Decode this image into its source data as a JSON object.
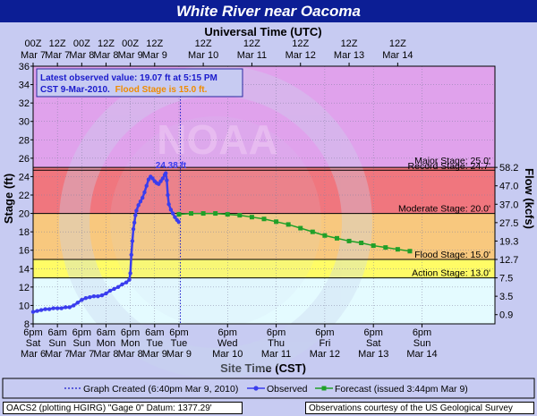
{
  "title": "White River near Oacoma",
  "top_axis_title": "Universal Time (UTC)",
  "bottom_axis_title": "Site Time (CST)",
  "ylabel": "Stage (ft)",
  "y2label": "Flow (kcfs)",
  "info_box": {
    "line1": "Latest observed value: 19.07 ft at 5:15 PM",
    "line2a": "CST 9-Mar-2010.",
    "line2b": "Flood Stage is 15.0 ft."
  },
  "peak_label": "24.38 ft",
  "legend": {
    "created": "Graph Created (6:40pm Mar 9, 2010)",
    "observed": "Observed",
    "forecast": "Forecast (issued 3:44pm Mar 9)"
  },
  "footer": {
    "left": "OACS2 (plotting HGIRG)  \"Gage 0\" Datum: 1377.29'",
    "right": "Observations courtesy of the  US Geological Survey"
  },
  "colors": {
    "title_bg": "#0c1e95",
    "major": "#e0a2ec",
    "moderate": "#f0767e",
    "flood": "#f8c87e",
    "action": "#fffc66",
    "normal": "#e4fbff",
    "observed": "#3a3dee",
    "forecast": "#20a028"
  },
  "chart_data": {
    "type": "line",
    "x_unit": "hours after 6pm Mar 6 CST",
    "xlim": [
      0,
      228
    ],
    "ylim": [
      8,
      36
    ],
    "y_ticks": [
      8,
      10,
      12,
      14,
      16,
      18,
      20,
      22,
      24,
      26,
      28,
      30,
      32,
      34,
      36
    ],
    "x_ticks_bottom": [
      {
        "x": 0,
        "l1": "6pm",
        "l2": "Sat",
        "l3": "Mar 6"
      },
      {
        "x": 12,
        "l1": "6am",
        "l2": "Sun",
        "l3": "Mar 7"
      },
      {
        "x": 24,
        "l1": "6pm",
        "l2": "Sun",
        "l3": "Mar 7"
      },
      {
        "x": 36,
        "l1": "6am",
        "l2": "Mon",
        "l3": "Mar 8"
      },
      {
        "x": 48,
        "l1": "6pm",
        "l2": "Mon",
        "l3": "Mar 8"
      },
      {
        "x": 60,
        "l1": "6am",
        "l2": "Tue",
        "l3": "Mar 9"
      },
      {
        "x": 72,
        "l1": "6pm",
        "l2": "Tue",
        "l3": "Mar 9"
      },
      {
        "x": 96,
        "l1": "6pm",
        "l2": "Wed",
        "l3": "Mar 10"
      },
      {
        "x": 120,
        "l1": "6pm",
        "l2": "Thu",
        "l3": "Mar 11"
      },
      {
        "x": 144,
        "l1": "6pm",
        "l2": "Fri",
        "l3": "Mar 12"
      },
      {
        "x": 168,
        "l1": "6pm",
        "l2": "Sat",
        "l3": "Mar 13"
      },
      {
        "x": 192,
        "l1": "6pm",
        "l2": "Sun",
        "l3": "Mar 14"
      }
    ],
    "x_ticks_top": [
      {
        "x": 0,
        "l1": "00Z",
        "l2": "Mar 7"
      },
      {
        "x": 12,
        "l1": "12Z",
        "l2": "Mar 7"
      },
      {
        "x": 24,
        "l1": "00Z",
        "l2": "Mar 8"
      },
      {
        "x": 36,
        "l1": "12Z",
        "l2": "Mar 8"
      },
      {
        "x": 48,
        "l1": "00Z",
        "l2": "Mar 9"
      },
      {
        "x": 60,
        "l1": "12Z",
        "l2": "Mar 9"
      },
      {
        "x": 84,
        "l1": "12Z",
        "l2": "Mar 10"
      },
      {
        "x": 108,
        "l1": "12Z",
        "l2": "Mar 11"
      },
      {
        "x": 132,
        "l1": "12Z",
        "l2": "Mar 12"
      },
      {
        "x": 156,
        "l1": "12Z",
        "l2": "Mar 13"
      },
      {
        "x": 180,
        "l1": "12Z",
        "l2": "Mar 14"
      }
    ],
    "flow_ticks": [
      {
        "stage": 9,
        "label": "0.9"
      },
      {
        "stage": 11,
        "label": "3.5"
      },
      {
        "stage": 13,
        "label": "7.5"
      },
      {
        "stage": 15,
        "label": "12.7"
      },
      {
        "stage": 17,
        "label": "19.3"
      },
      {
        "stage": 19,
        "label": "27.5"
      },
      {
        "stage": 21,
        "label": "37.0"
      },
      {
        "stage": 23,
        "label": "47.0"
      },
      {
        "stage": 25,
        "label": "58.2"
      }
    ],
    "stage_bands": [
      {
        "from": 25.0,
        "to": 36,
        "color": "#e0a2ec"
      },
      {
        "from": 20.0,
        "to": 25.0,
        "color": "#f0767e"
      },
      {
        "from": 15.0,
        "to": 20.0,
        "color": "#f8c87e"
      },
      {
        "from": 13.0,
        "to": 15.0,
        "color": "#fffc66"
      },
      {
        "from": 8,
        "to": 13.0,
        "color": "#e4fbff"
      }
    ],
    "thresholds": [
      {
        "value": 25.0,
        "label": "Major Stage: 25.0'"
      },
      {
        "value": 24.7,
        "label": "Record Stage: 24.7'"
      },
      {
        "value": 20.0,
        "label": "Moderate Stage: 20.0'"
      },
      {
        "value": 15.0,
        "label": "Flood Stage: 15.0'"
      },
      {
        "value": 13.0,
        "label": "Action Stage: 13.0'"
      }
    ],
    "graph_created_x": 72.7,
    "observed": [
      [
        0,
        9.3
      ],
      [
        2,
        9.4
      ],
      [
        4,
        9.5
      ],
      [
        6,
        9.6
      ],
      [
        8,
        9.6
      ],
      [
        10,
        9.7
      ],
      [
        12,
        9.7
      ],
      [
        14,
        9.7
      ],
      [
        16,
        9.8
      ],
      [
        18,
        9.8
      ],
      [
        20,
        10.0
      ],
      [
        22,
        10.3
      ],
      [
        24,
        10.6
      ],
      [
        26,
        10.8
      ],
      [
        28,
        10.9
      ],
      [
        30,
        11.0
      ],
      [
        32,
        11.0
      ],
      [
        34,
        11.1
      ],
      [
        36,
        11.3
      ],
      [
        38,
        11.6
      ],
      [
        40,
        11.8
      ],
      [
        42,
        12.0
      ],
      [
        44,
        12.3
      ],
      [
        46,
        12.5
      ],
      [
        47.5,
        12.8
      ],
      [
        48,
        13.5
      ],
      [
        48.5,
        15.5
      ],
      [
        49,
        17.0
      ],
      [
        49.5,
        18.3
      ],
      [
        50,
        19.0
      ],
      [
        50.5,
        19.8
      ],
      [
        51,
        20.3
      ],
      [
        52,
        20.9
      ],
      [
        53,
        21.3
      ],
      [
        54,
        21.7
      ],
      [
        55,
        22.3
      ],
      [
        56,
        23.0
      ],
      [
        57,
        23.7
      ],
      [
        58,
        24.0
      ],
      [
        59,
        23.8
      ],
      [
        60,
        23.5
      ],
      [
        61,
        23.3
      ],
      [
        62,
        23.2
      ],
      [
        63,
        23.5
      ],
      [
        64,
        23.8
      ],
      [
        65,
        24.2
      ],
      [
        65.5,
        24.38
      ],
      [
        66,
        23.6
      ],
      [
        66.5,
        22.0
      ],
      [
        67,
        21.0
      ],
      [
        68,
        20.4
      ],
      [
        69,
        20.0
      ],
      [
        70,
        19.6
      ],
      [
        71,
        19.3
      ],
      [
        71.9,
        19.07
      ]
    ],
    "forecast": [
      [
        72,
        19.9
      ],
      [
        78,
        20.0
      ],
      [
        84,
        20.0
      ],
      [
        90,
        20.0
      ],
      [
        96,
        19.9
      ],
      [
        102,
        19.8
      ],
      [
        108,
        19.6
      ],
      [
        114,
        19.4
      ],
      [
        120,
        19.1
      ],
      [
        126,
        18.8
      ],
      [
        132,
        18.4
      ],
      [
        138,
        18.0
      ],
      [
        144,
        17.6
      ],
      [
        150,
        17.3
      ],
      [
        156,
        17.0
      ],
      [
        162,
        16.8
      ],
      [
        168,
        16.5
      ],
      [
        174,
        16.3
      ],
      [
        180,
        16.1
      ],
      [
        186,
        15.9
      ]
    ]
  }
}
